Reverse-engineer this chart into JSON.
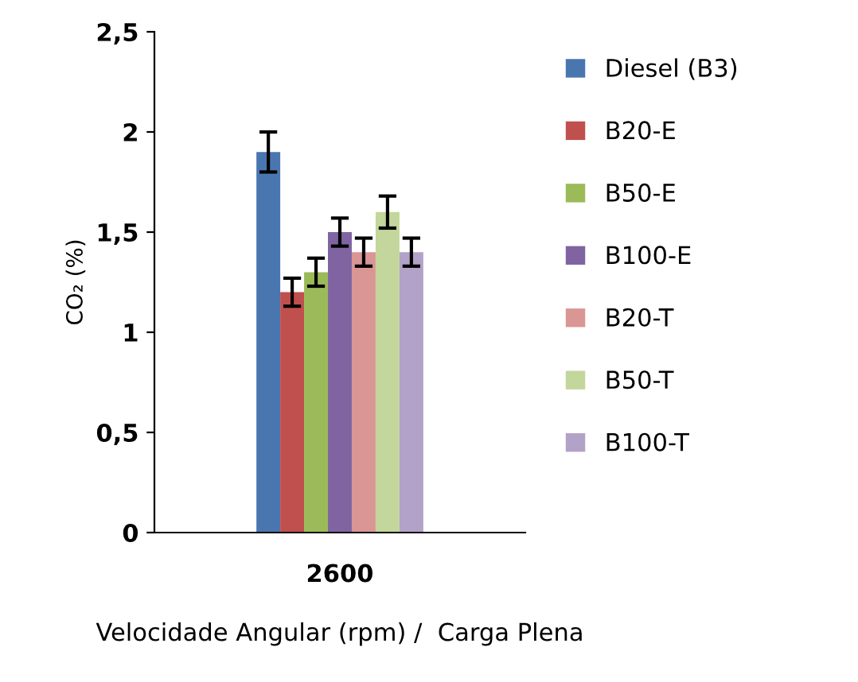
{
  "chart_data": {
    "type": "bar",
    "xlabel": "Velocidade Angular (rpm) /  Carga Plena",
    "ylabel": "CO₂ (%)",
    "categories": [
      "2600"
    ],
    "series": [
      {
        "name": "Diesel (B3)",
        "color": "#4a76b0",
        "values": [
          1.9
        ],
        "errors": [
          0.1
        ]
      },
      {
        "name": "B20-E",
        "color": "#c0504d",
        "values": [
          1.2
        ],
        "errors": [
          0.07
        ]
      },
      {
        "name": "B50-E",
        "color": "#9bbb59",
        "values": [
          1.3
        ],
        "errors": [
          0.07
        ]
      },
      {
        "name": "B100-E",
        "color": "#8064a2",
        "values": [
          1.5
        ],
        "errors": [
          0.07
        ]
      },
      {
        "name": "B20-T",
        "color": "#d99694",
        "values": [
          1.4
        ],
        "errors": [
          0.07
        ]
      },
      {
        "name": "B50-T",
        "color": "#c3d69b",
        "values": [
          1.6
        ],
        "errors": [
          0.08
        ]
      },
      {
        "name": "B100-T",
        "color": "#b3a2c7",
        "values": [
          1.4
        ],
        "errors": [
          0.07
        ]
      }
    ],
    "ylim": [
      0,
      2.5
    ],
    "yticks": [
      0,
      {
        "value": 0.5,
        "label": "0,5"
      },
      1,
      {
        "value": 1.5,
        "label": "1,5"
      },
      2,
      {
        "value": 2.5,
        "label": "2,5"
      }
    ],
    "grid": false,
    "legend": "right"
  }
}
